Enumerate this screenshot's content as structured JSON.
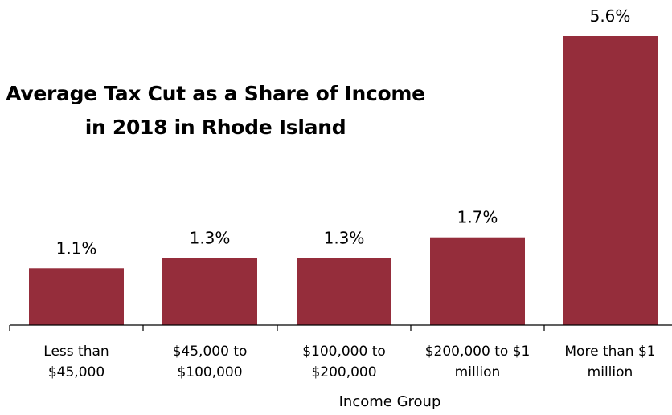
{
  "chart_data": {
    "type": "bar",
    "title_lines": [
      "Average Tax Cut as a Share of Income",
      "in 2018 in Rhode Island"
    ],
    "categories": [
      [
        "Less than",
        "$45,000"
      ],
      [
        "$45,000 to",
        "$100,000"
      ],
      [
        "$100,000 to",
        "$200,000"
      ],
      [
        "$200,000 to $1",
        "million"
      ],
      [
        "More than $1",
        "million"
      ]
    ],
    "values": [
      1.1,
      1.3,
      1.3,
      1.7,
      5.6
    ],
    "data_labels": [
      "1.1%",
      "1.3%",
      "1.3%",
      "1.7%",
      "5.6%"
    ],
    "xlabel": "Income Group",
    "ylabel": "",
    "ylim": [
      0,
      6
    ],
    "grid": false,
    "legend": "none",
    "bar_color": "#952d3b"
  }
}
